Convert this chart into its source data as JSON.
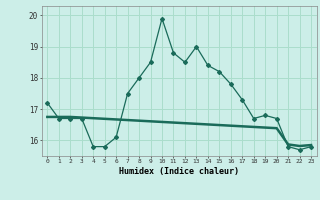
{
  "xlabel": "Humidex (Indice chaleur)",
  "background_color": "#cceee8",
  "grid_color": "#aaddcc",
  "line_color": "#1a6b5a",
  "x": [
    0,
    1,
    2,
    3,
    4,
    5,
    6,
    7,
    8,
    9,
    10,
    11,
    12,
    13,
    14,
    15,
    16,
    17,
    18,
    19,
    20,
    21,
    22,
    23
  ],
  "y_main": [
    17.2,
    16.7,
    16.7,
    16.7,
    15.8,
    15.8,
    16.1,
    17.5,
    18.0,
    18.5,
    19.9,
    18.8,
    18.5,
    19.0,
    18.4,
    18.2,
    17.8,
    17.3,
    16.7,
    16.8,
    16.7,
    15.8,
    15.7,
    15.8
  ],
  "y_avg": [
    16.75,
    16.75,
    16.75,
    16.73,
    16.71,
    16.69,
    16.67,
    16.65,
    16.63,
    16.61,
    16.59,
    16.57,
    16.55,
    16.53,
    16.51,
    16.49,
    16.47,
    16.45,
    16.43,
    16.41,
    16.39,
    15.87,
    15.82,
    15.85
  ],
  "ylim": [
    15.5,
    20.3
  ],
  "yticks": [
    16,
    17,
    18,
    19,
    20
  ],
  "xticks": [
    0,
    1,
    2,
    3,
    4,
    5,
    6,
    7,
    8,
    9,
    10,
    11,
    12,
    13,
    14,
    15,
    16,
    17,
    18,
    19,
    20,
    21,
    22,
    23
  ]
}
